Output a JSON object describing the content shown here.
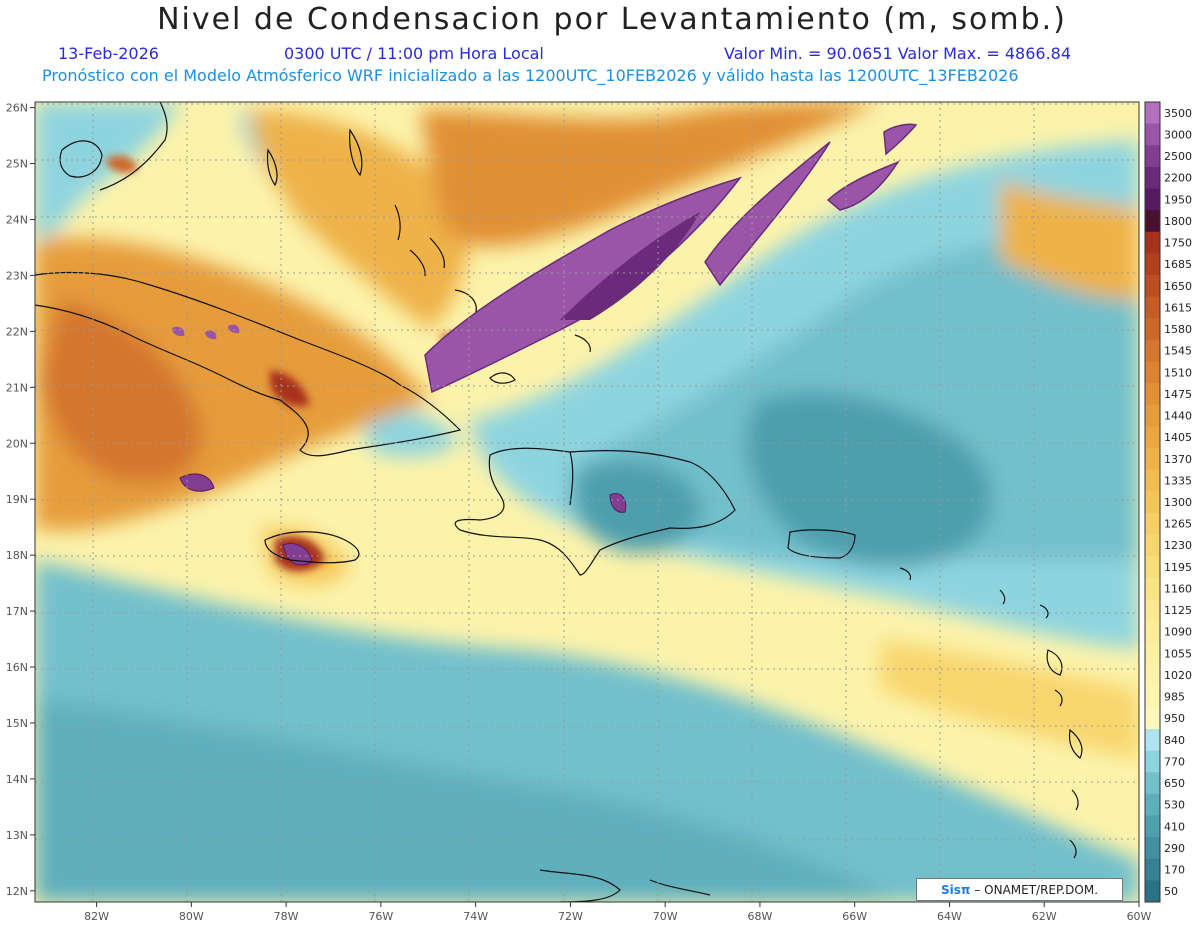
{
  "header": {
    "title": "Nivel de Condensacion por Levantamiento (m, somb.)",
    "date": "13-Feb-2026",
    "time": "0300 UTC / 11:00 pm Hora Local",
    "minmax": "Valor Min. = 90.0651   Valor Max. = 4866.84",
    "subtitle": "Pronóstico con el Modelo Atmósferico WRF inicializado a las 1200UTC_10FEB2026 y válido hasta las  1200UTC_13FEB2026"
  },
  "map": {
    "lon_range": [
      -83.3,
      -60.0
    ],
    "lat_range": [
      11.8,
      26.1
    ],
    "lon_ticks": [
      "82W",
      "80W",
      "78W",
      "76W",
      "74W",
      "72W",
      "70W",
      "68W",
      "66W",
      "64W",
      "62W",
      "60W"
    ],
    "lat_ticks": [
      "12N",
      "13N",
      "14N",
      "15N",
      "16N",
      "17N",
      "18N",
      "19N",
      "20N",
      "21N",
      "22N",
      "23N",
      "24N",
      "25N",
      "26N"
    ],
    "grid": true
  },
  "colorbar": {
    "labels": [
      "3500",
      "3000",
      "2500",
      "2200",
      "1950",
      "1800",
      "1750",
      "1685",
      "1650",
      "1615",
      "1580",
      "1545",
      "1510",
      "1475",
      "1440",
      "1405",
      "1370",
      "1335",
      "1300",
      "1265",
      "1230",
      "1195",
      "1160",
      "1125",
      "1090",
      "1055",
      "1020",
      "985",
      "950",
      "840",
      "770",
      "650",
      "530",
      "410",
      "290",
      "170",
      "50"
    ],
    "colors": [
      "#b56fbf",
      "#9b55a8",
      "#833e93",
      "#6b2a7a",
      "#561a62",
      "#4a1030",
      "#a8331c",
      "#b2401f",
      "#bc4e22",
      "#c55b25",
      "#cd6829",
      "#d4762d",
      "#db8331",
      "#e19036",
      "#e69c3b",
      "#eaa741",
      "#eeb248",
      "#f1bd50",
      "#f4c659",
      "#f6ce63",
      "#f8d66e",
      "#f9dd7a",
      "#fae385",
      "#fbe890",
      "#fced9a",
      "#fcf0a3",
      "#fcf3ab",
      "#fcf5b2",
      "#fdf7ba",
      "#aee4ee",
      "#8ed4df",
      "#72c0cc",
      "#5eafbd",
      "#4e9fae",
      "#418fa0",
      "#358093",
      "#2a7286"
    ]
  },
  "credit": {
    "brand": "Sisπ",
    "text": "– ONAMET/REP.DOM."
  }
}
